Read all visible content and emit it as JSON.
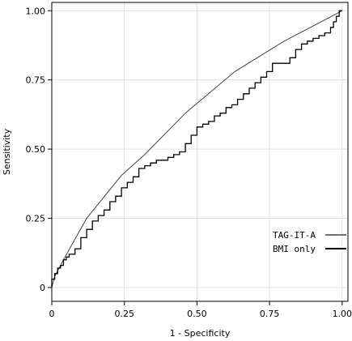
{
  "chart_data": {
    "type": "line",
    "xlabel": "1 - Specificity",
    "ylabel": "Sensitivity",
    "xlim": [
      0,
      1.02
    ],
    "ylim": [
      -0.05,
      1.03
    ],
    "x_ticks": [
      0,
      0.25,
      0.5,
      0.75,
      1.0
    ],
    "x_tick_labels": [
      "0",
      "0.25",
      "0.50",
      "0.75",
      "1.00"
    ],
    "y_ticks": [
      0,
      0.25,
      0.5,
      0.75,
      1.0
    ],
    "y_tick_labels": [
      "0",
      "0.25",
      "0.50",
      "0.75",
      "1.00"
    ],
    "grid": true,
    "legend_position": "bottom-right",
    "series": [
      {
        "name": "TAG-IT-A",
        "color": "#444444",
        "style": "line",
        "x": [
          0,
          0.01,
          0.04,
          0.12,
          0.24,
          0.32,
          0.46,
          0.63,
          0.8,
          1.0
        ],
        "y": [
          0,
          0.04,
          0.1,
          0.25,
          0.405,
          0.48,
          0.63,
          0.78,
          0.89,
          1.0
        ]
      },
      {
        "name": "BMI only",
        "color": "#000000",
        "style": "step",
        "x": [
          0,
          0.01,
          0.02,
          0.03,
          0.04,
          0.05,
          0.06,
          0.08,
          0.1,
          0.12,
          0.14,
          0.16,
          0.18,
          0.2,
          0.22,
          0.24,
          0.26,
          0.28,
          0.3,
          0.32,
          0.34,
          0.36,
          0.38,
          0.4,
          0.42,
          0.44,
          0.46,
          0.48,
          0.5,
          0.52,
          0.54,
          0.56,
          0.58,
          0.6,
          0.62,
          0.64,
          0.66,
          0.68,
          0.7,
          0.72,
          0.74,
          0.76,
          0.78,
          0.8,
          0.82,
          0.84,
          0.86,
          0.88,
          0.9,
          0.92,
          0.94,
          0.96,
          0.97,
          0.98,
          0.99,
          1.0
        ],
        "y": [
          0,
          0.03,
          0.05,
          0.07,
          0.08,
          0.1,
          0.11,
          0.12,
          0.14,
          0.18,
          0.21,
          0.24,
          0.26,
          0.28,
          0.31,
          0.33,
          0.36,
          0.38,
          0.4,
          0.43,
          0.44,
          0.45,
          0.46,
          0.46,
          0.47,
          0.48,
          0.49,
          0.52,
          0.55,
          0.58,
          0.59,
          0.6,
          0.62,
          0.63,
          0.65,
          0.66,
          0.68,
          0.7,
          0.72,
          0.74,
          0.76,
          0.78,
          0.81,
          0.81,
          0.81,
          0.83,
          0.86,
          0.88,
          0.89,
          0.9,
          0.91,
          0.92,
          0.94,
          0.96,
          0.98,
          1.0
        ]
      }
    ]
  }
}
